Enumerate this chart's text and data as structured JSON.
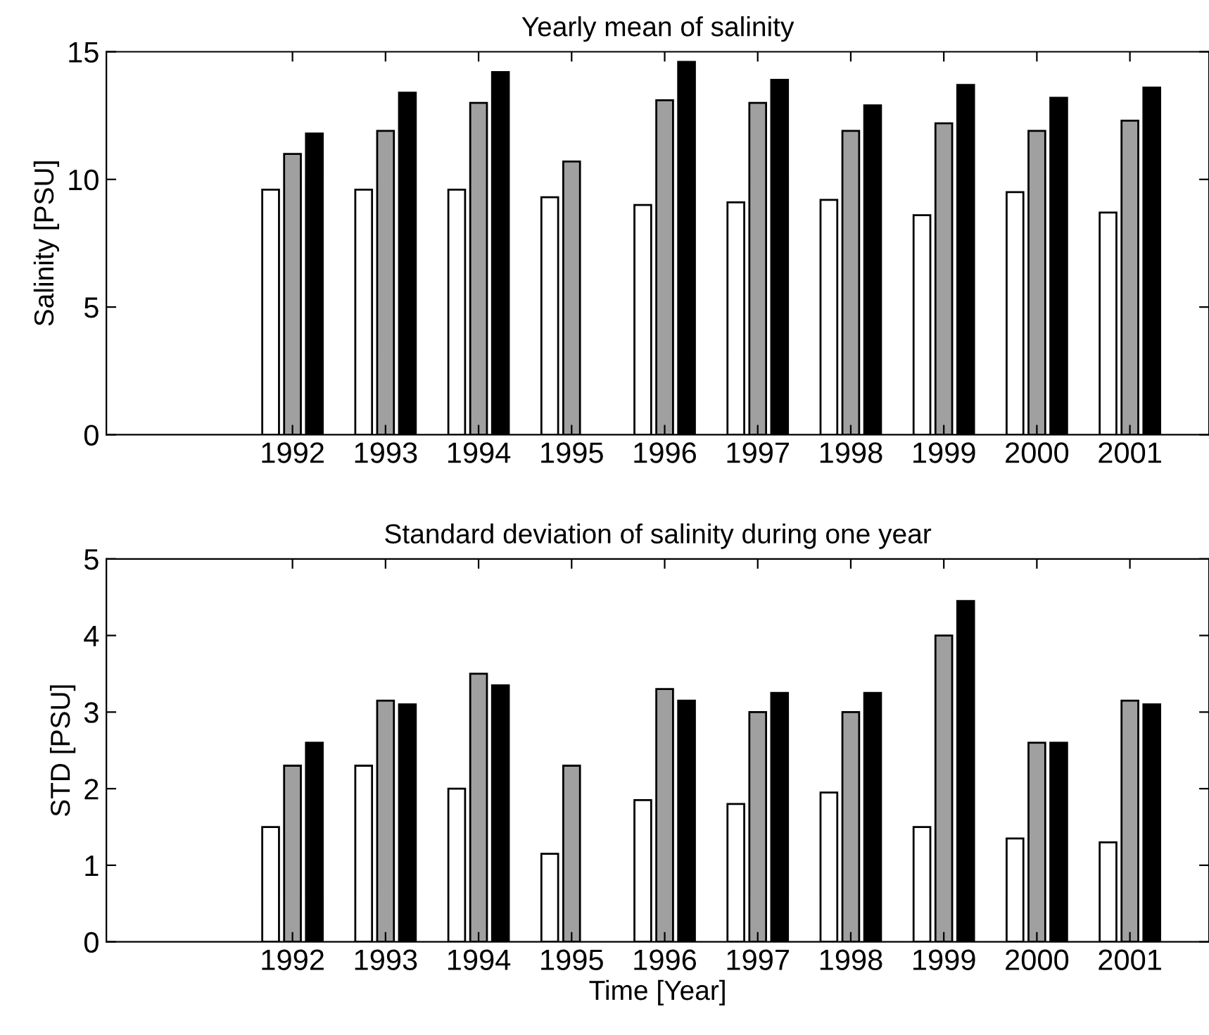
{
  "chart_data": [
    {
      "type": "bar",
      "title": "Yearly mean of salinity",
      "ylabel": "Salinity [PSU]",
      "x": [
        1992,
        1993,
        1994,
        1995,
        1996,
        1997,
        1998,
        1999,
        2000,
        2001
      ],
      "xlim": [
        1990,
        2001.85
      ],
      "xticks": [
        1992,
        1993,
        1994,
        1995,
        1996,
        1997,
        1998,
        1999,
        2000,
        2001
      ],
      "ylim": [
        0,
        15
      ],
      "yticks": [
        0,
        5,
        10,
        15
      ],
      "grid": false,
      "series": [
        {
          "color": "#ffffff",
          "values": [
            9.6,
            9.6,
            9.6,
            9.3,
            9.0,
            9.1,
            9.2,
            8.6,
            9.5,
            8.7
          ]
        },
        {
          "color": "#a0a0a0",
          "values": [
            11.0,
            11.9,
            13.0,
            10.7,
            13.1,
            13.0,
            11.9,
            12.2,
            11.9,
            12.3
          ]
        },
        {
          "color": "#000000",
          "values": [
            11.8,
            13.4,
            14.2,
            null,
            14.6,
            13.9,
            12.9,
            13.7,
            13.2,
            13.6
          ]
        }
      ]
    },
    {
      "type": "bar",
      "title": "Standard deviation of salinity during one year",
      "xlabel": "Time [Year]",
      "ylabel": "STD [PSU]",
      "x": [
        1992,
        1993,
        1994,
        1995,
        1996,
        1997,
        1998,
        1999,
        2000,
        2001
      ],
      "xlim": [
        1990,
        2001.85
      ],
      "xticks": [
        1992,
        1993,
        1994,
        1995,
        1996,
        1997,
        1998,
        1999,
        2000,
        2001
      ],
      "ylim": [
        0,
        5
      ],
      "yticks": [
        0,
        1,
        2,
        3,
        4,
        5
      ],
      "grid": false,
      "series": [
        {
          "color": "#ffffff",
          "values": [
            1.5,
            2.3,
            2.0,
            1.15,
            1.85,
            1.8,
            1.95,
            1.5,
            1.35,
            1.3
          ]
        },
        {
          "color": "#a0a0a0",
          "values": [
            2.3,
            3.15,
            3.5,
            2.3,
            3.3,
            3.0,
            3.0,
            4.0,
            2.6,
            3.15
          ]
        },
        {
          "color": "#000000",
          "values": [
            2.6,
            3.1,
            3.35,
            null,
            3.15,
            3.25,
            3.25,
            4.45,
            2.6,
            3.1
          ]
        }
      ]
    }
  ]
}
